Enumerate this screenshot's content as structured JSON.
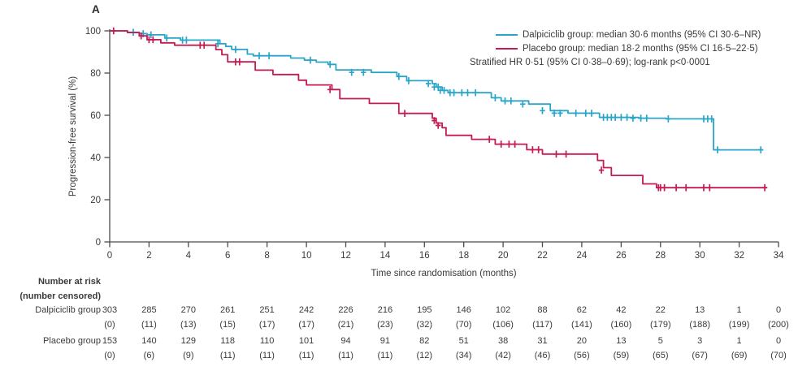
{
  "panel_label": "A",
  "colors": {
    "dalpiciclib": "#29a5c9",
    "placebo": "#c31b52",
    "axis": "#4b4b4d",
    "text": "#3a3a3a"
  },
  "legend": {
    "items": [
      {
        "id": "dalpiciclib",
        "label": "Dalpiciclib group: median 30·6 months (95% CI 30·6–NR)"
      },
      {
        "id": "placebo",
        "label": "Placebo group: median 18·2 months (95% CI 16·5–22·5)"
      }
    ],
    "note": "Stratified HR 0·51 (95% CI 0·38–0·69); log-rank p<0·0001"
  },
  "chart_data": {
    "type": "line",
    "subtype": "kaplan_meier_step",
    "title": "",
    "xlabel": "Time since randomisation (months)",
    "ylabel": "Progression-free survival (%)",
    "xlim": [
      0,
      34
    ],
    "ylim": [
      0,
      100
    ],
    "xticks": [
      0,
      2,
      4,
      6,
      8,
      10,
      12,
      14,
      16,
      18,
      20,
      22,
      24,
      26,
      28,
      30,
      32,
      34
    ],
    "yticks": [
      0,
      20,
      40,
      60,
      80,
      100
    ],
    "grid": false,
    "legend_position": "top-right",
    "series": [
      {
        "id": "dalpiciclib",
        "name": "Dalpiciclib group",
        "median_months": "30·6",
        "ci": "30·6–NR",
        "color": "#29a5c9",
        "steps": [
          [
            0,
            100
          ],
          [
            0.9,
            99.3
          ],
          [
            1.5,
            98.7
          ],
          [
            1.9,
            98.1
          ],
          [
            2.8,
            96.6
          ],
          [
            3.6,
            95.6
          ],
          [
            5.6,
            93.9
          ],
          [
            5.9,
            92.6
          ],
          [
            6.2,
            91.2
          ],
          [
            7.0,
            89.0
          ],
          [
            7.3,
            88.2
          ],
          [
            9.2,
            87.1
          ],
          [
            9.9,
            86.1
          ],
          [
            10.5,
            85.2
          ],
          [
            11.1,
            84.1
          ],
          [
            11.5,
            81.5
          ],
          [
            13.3,
            80.3
          ],
          [
            14.6,
            78.4
          ],
          [
            15.1,
            76.4
          ],
          [
            16.4,
            75.0
          ],
          [
            16.6,
            73.4
          ],
          [
            16.9,
            71.8
          ],
          [
            17.2,
            70.7
          ],
          [
            19.4,
            68.3
          ],
          [
            19.9,
            66.8
          ],
          [
            21.3,
            65.3
          ],
          [
            22.4,
            62.2
          ],
          [
            23.3,
            61.0
          ],
          [
            24.9,
            59.0
          ],
          [
            26.9,
            58.6
          ],
          [
            28.3,
            58.3
          ],
          [
            30.7,
            43.6
          ],
          [
            33.2,
            43.6
          ]
        ],
        "censors": [
          [
            1.2,
            99.3
          ],
          [
            1.7,
            98.7
          ],
          [
            2.1,
            98.1
          ],
          [
            2.9,
            96.6
          ],
          [
            3.7,
            95.6
          ],
          [
            3.9,
            95.6
          ],
          [
            5.5,
            93.9
          ],
          [
            6.4,
            91.2
          ],
          [
            7.6,
            88.2
          ],
          [
            8.1,
            88.2
          ],
          [
            10.2,
            86.1
          ],
          [
            11.2,
            84.1
          ],
          [
            12.3,
            80.3
          ],
          [
            12.9,
            80.3
          ],
          [
            14.7,
            78.4
          ],
          [
            15.2,
            76.4
          ],
          [
            16.2,
            75.0
          ],
          [
            16.5,
            73.4
          ],
          [
            16.7,
            73.4
          ],
          [
            16.8,
            71.8
          ],
          [
            17.0,
            71.8
          ],
          [
            17.3,
            70.7
          ],
          [
            17.5,
            70.7
          ],
          [
            17.9,
            70.7
          ],
          [
            18.2,
            70.7
          ],
          [
            18.6,
            70.7
          ],
          [
            19.6,
            68.3
          ],
          [
            20.1,
            66.8
          ],
          [
            20.4,
            66.8
          ],
          [
            21.0,
            65.3
          ],
          [
            22.0,
            62.2
          ],
          [
            22.6,
            61.0
          ],
          [
            22.9,
            61.0
          ],
          [
            23.7,
            61.0
          ],
          [
            24.2,
            61.0
          ],
          [
            24.5,
            61.0
          ],
          [
            25.1,
            59.0
          ],
          [
            25.3,
            59.0
          ],
          [
            25.5,
            59.0
          ],
          [
            25.7,
            59.0
          ],
          [
            26.0,
            59.0
          ],
          [
            26.3,
            59.0
          ],
          [
            26.6,
            58.6
          ],
          [
            27.0,
            58.6
          ],
          [
            27.3,
            58.6
          ],
          [
            28.4,
            58.3
          ],
          [
            30.2,
            58.3
          ],
          [
            30.4,
            58.3
          ],
          [
            30.6,
            58.3
          ],
          [
            30.9,
            43.6
          ],
          [
            33.1,
            43.6
          ]
        ]
      },
      {
        "id": "placebo",
        "name": "Placebo group",
        "median_months": "18·2",
        "ci": "16·5–22·5",
        "color": "#c31b52",
        "steps": [
          [
            0,
            100
          ],
          [
            0.9,
            99.2
          ],
          [
            1.5,
            97.6
          ],
          [
            1.9,
            95.8
          ],
          [
            2.6,
            94.3
          ],
          [
            3.3,
            93.2
          ],
          [
            5.4,
            91.1
          ],
          [
            5.7,
            88.7
          ],
          [
            6.0,
            85.3
          ],
          [
            7.4,
            81.4
          ],
          [
            8.3,
            79.3
          ],
          [
            9.6,
            76.6
          ],
          [
            10.0,
            74.4
          ],
          [
            11.3,
            72.2
          ],
          [
            11.7,
            67.9
          ],
          [
            13.2,
            65.6
          ],
          [
            14.7,
            60.9
          ],
          [
            16.4,
            58.6
          ],
          [
            16.6,
            56.3
          ],
          [
            16.9,
            54.1
          ],
          [
            17.1,
            50.5
          ],
          [
            18.4,
            48.6
          ],
          [
            19.6,
            46.3
          ],
          [
            21.2,
            43.7
          ],
          [
            22.0,
            41.6
          ],
          [
            24.8,
            38.6
          ],
          [
            25.1,
            35.2
          ],
          [
            25.5,
            31.5
          ],
          [
            27.1,
            27.5
          ],
          [
            27.8,
            25.7
          ],
          [
            33.4,
            25.7
          ]
        ],
        "censors": [
          [
            0.2,
            100
          ],
          [
            1.6,
            97.6
          ],
          [
            2.0,
            95.8
          ],
          [
            2.2,
            95.8
          ],
          [
            4.6,
            93.2
          ],
          [
            4.8,
            93.2
          ],
          [
            6.4,
            85.3
          ],
          [
            6.6,
            85.3
          ],
          [
            11.2,
            72.2
          ],
          [
            15.0,
            60.9
          ],
          [
            16.5,
            57.5
          ],
          [
            16.7,
            55.2
          ],
          [
            19.3,
            48.6
          ],
          [
            19.9,
            46.3
          ],
          [
            20.3,
            46.3
          ],
          [
            20.6,
            46.3
          ],
          [
            21.5,
            43.7
          ],
          [
            21.8,
            43.7
          ],
          [
            22.7,
            41.6
          ],
          [
            23.2,
            41.6
          ],
          [
            25.0,
            34.0
          ],
          [
            27.9,
            25.7
          ],
          [
            28.0,
            25.7
          ],
          [
            28.2,
            25.7
          ],
          [
            28.8,
            25.7
          ],
          [
            29.3,
            25.7
          ],
          [
            30.2,
            25.7
          ],
          [
            30.5,
            25.7
          ],
          [
            33.3,
            25.7
          ]
        ]
      }
    ]
  },
  "risk_table": {
    "title_line1": "Number at risk",
    "title_line2": "(number censored)",
    "times": [
      0,
      2,
      4,
      6,
      8,
      10,
      12,
      14,
      16,
      18,
      20,
      22,
      24,
      26,
      28,
      30,
      32,
      34
    ],
    "rows": [
      {
        "label": "Dalpiciclib group",
        "counts": [
          "303",
          "285",
          "270",
          "261",
          "251",
          "242",
          "226",
          "216",
          "195",
          "146",
          "102",
          "88",
          "62",
          "42",
          "22",
          "13",
          "1",
          "0"
        ],
        "censored": [
          "(0)",
          "(11)",
          "(13)",
          "(15)",
          "(17)",
          "(17)",
          "(21)",
          "(23)",
          "(32)",
          "(70)",
          "(106)",
          "(117)",
          "(141)",
          "(160)",
          "(179)",
          "(188)",
          "(199)",
          "(200)"
        ]
      },
      {
        "label": "Placebo group",
        "counts": [
          "153",
          "140",
          "129",
          "118",
          "110",
          "101",
          "94",
          "91",
          "82",
          "51",
          "38",
          "31",
          "20",
          "13",
          "5",
          "3",
          "1",
          "0"
        ],
        "censored": [
          "(0)",
          "(6)",
          "(9)",
          "(11)",
          "(11)",
          "(11)",
          "(11)",
          "(11)",
          "(12)",
          "(34)",
          "(42)",
          "(46)",
          "(56)",
          "(59)",
          "(65)",
          "(67)",
          "(69)",
          "(70)"
        ]
      }
    ]
  }
}
